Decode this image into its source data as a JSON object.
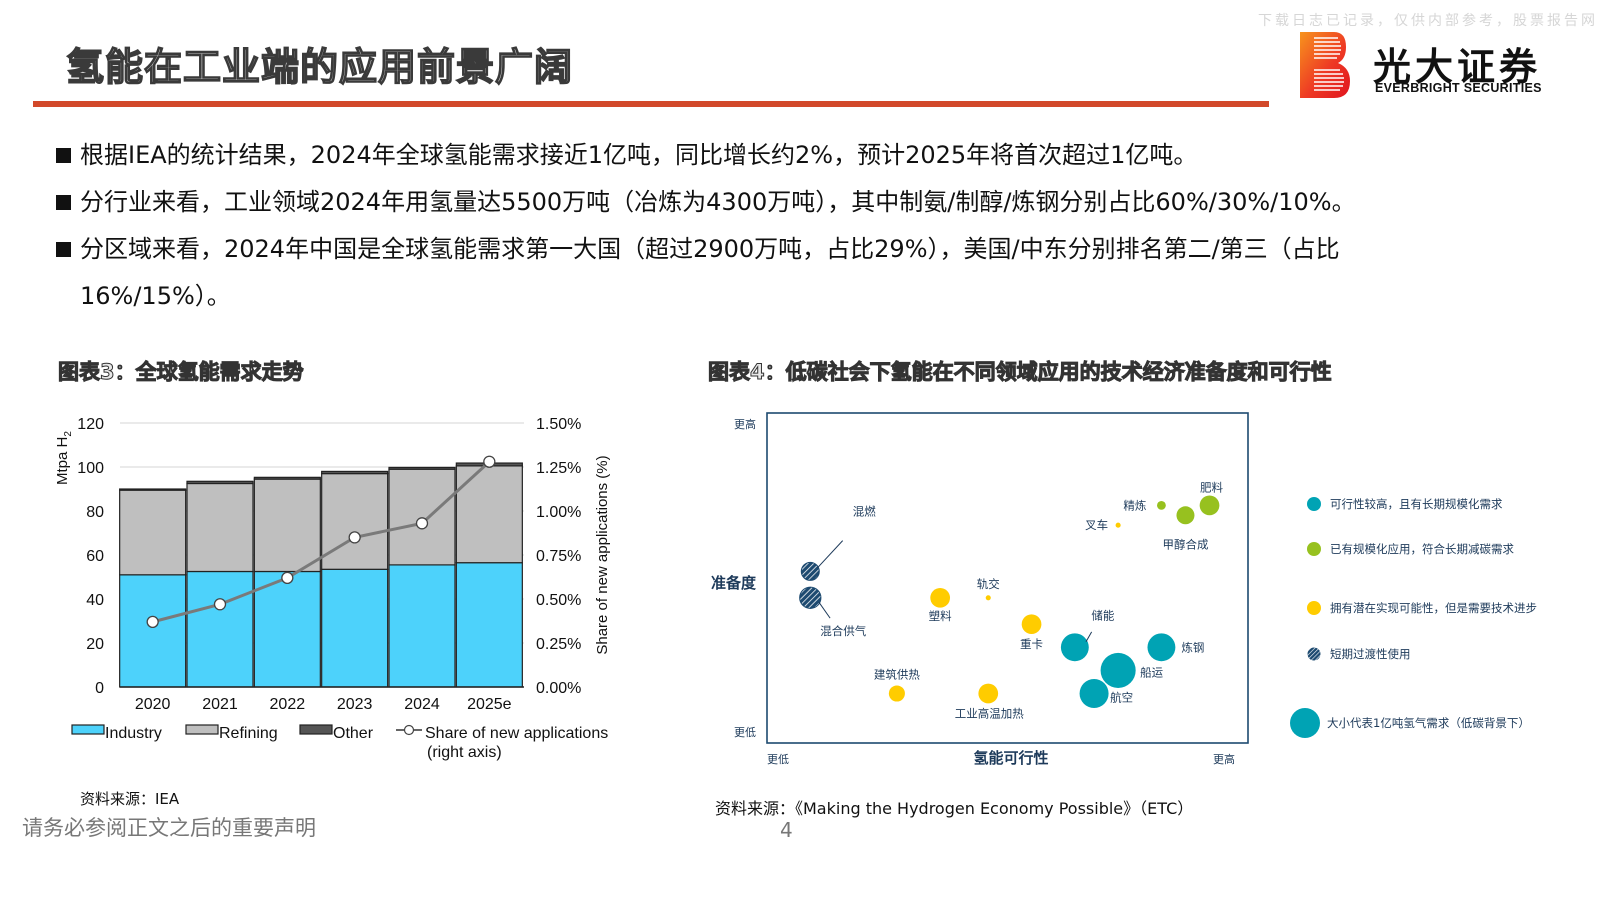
{
  "header": {
    "title": "氢能在工业端的应用前景广阔",
    "watermark": "下载日志已记录，仅供内部参考，股票报告网",
    "logo_cn": "光大证券",
    "logo_en": "EVERBRIGHT SECURITIES",
    "accent_color": "#d2492a"
  },
  "bullets": [
    "根据IEA的统计结果，2024年全球氢能需求接近1亿吨，同比增长约2%，预计2025年将首次超过1亿吨。",
    "分行业来看，工业领域2024年用氢量达5500万吨（冶炼为4300万吨），其中制氨/制醇/炼钢分别占比60%/30%/10%。",
    "分区域来看，2024年中国是全球氢能需求第一大国（超过2900万吨，占比29%），美国/中东分别排名第二/第三（占比16%/15%）。"
  ],
  "figure3": {
    "title": "图表3：全球氢能需求走势",
    "source": "资料来源：IEA"
  },
  "figure4": {
    "title": "图表4：低碳社会下氢能在不同领域应用的技术经济准备度和可行性",
    "source": "资料来源：《Making the Hydrogen Economy Possible》（ETC）"
  },
  "footer": {
    "disclaimer": "请务必参阅正文之后的重要声明",
    "page_number": "4"
  },
  "chart_data": [
    {
      "type": "bar",
      "stacked": true,
      "title": "",
      "categories": [
        "2020",
        "2021",
        "2022",
        "2023",
        "2024",
        "2025e"
      ],
      "series": [
        {
          "name": "Industry",
          "color": "#4dd2fb",
          "values": [
            51,
            52.5,
            52.5,
            53.5,
            55.5,
            56.5
          ]
        },
        {
          "name": "Refining",
          "color": "#bfbfbf",
          "values": [
            38.5,
            40,
            42,
            43.5,
            43.5,
            44
          ]
        },
        {
          "name": "Other",
          "color": "#555555",
          "values": [
            0.5,
            1,
            0.8,
            1,
            0.8,
            1.3
          ]
        }
      ],
      "line_series": {
        "name": "Share of new applications (right axis)",
        "axis": "right",
        "values": [
          0.37,
          0.47,
          0.62,
          0.85,
          0.93,
          1.28
        ]
      },
      "ylabel": "Mtpa H2",
      "ylabel_sub": "2",
      "ylabel_main": "Mtpa H",
      "y2label": "Share of new applications (%)",
      "ylim": [
        0,
        120
      ],
      "yticks": [
        "0",
        "20",
        "40",
        "60",
        "80",
        "100",
        "120"
      ],
      "y2lim": [
        0,
        1.5
      ],
      "y2ticks": [
        "0.00%",
        "0.25%",
        "0.50%",
        "0.75%",
        "1.00%",
        "1.25%",
        "1.50%"
      ],
      "legend": [
        {
          "label": "Industry",
          "kind": "box",
          "color": "#4dd2fb"
        },
        {
          "label": "Refining",
          "kind": "box",
          "color": "#bfbfbf"
        },
        {
          "label": "Other",
          "kind": "box",
          "color": "#555555"
        },
        {
          "label": "Share of new applications",
          "label2": "(right axis)",
          "kind": "line"
        }
      ],
      "legend_position": "bottom",
      "grid": true
    },
    {
      "type": "scatter",
      "subtype": "bubble",
      "xlabel": "氢能可行性",
      "ylabel": "准备度",
      "x_low_label": "更低",
      "x_high_label": "更高",
      "y_low_label": "更低",
      "y_high_label": "更高",
      "xlim": [
        0,
        100
      ],
      "ylim": [
        0,
        100
      ],
      "categories": {
        "teal": {
          "color": "#00a3b4",
          "label": "可行性较高，且有长期规模化需求"
        },
        "green": {
          "color": "#97c11f",
          "label": "已有规模化应用，符合长期减碳需求"
        },
        "yellow": {
          "color": "#ffcc00",
          "label": "拥有潜在实现可能性，但是需要技术进步"
        },
        "hatched": {
          "color": "#1d4a70",
          "label": "短期过渡性使用"
        }
      },
      "size_legend": "大小代表1亿吨氢气需求（低碳背景下）",
      "points": [
        {
          "name": "混燃",
          "x": 9,
          "y": 52,
          "size": 0.25,
          "cat": "hatched"
        },
        {
          "name": "混合供气",
          "x": 9,
          "y": 44,
          "size": 0.35,
          "cat": "hatched"
        },
        {
          "name": "塑料",
          "x": 36,
          "y": 44,
          "size": 0.3,
          "cat": "yellow"
        },
        {
          "name": "轨交",
          "x": 46,
          "y": 44,
          "size": 0.02,
          "cat": "yellow"
        },
        {
          "name": "重卡",
          "x": 55,
          "y": 36,
          "size": 0.3,
          "cat": "yellow"
        },
        {
          "name": "建筑供热",
          "x": 27,
          "y": 15,
          "size": 0.2,
          "cat": "yellow"
        },
        {
          "name": "工业高温加热",
          "x": 46,
          "y": 15,
          "size": 0.3,
          "cat": "yellow"
        },
        {
          "name": "叉车",
          "x": 73,
          "y": 66,
          "size": 0.02,
          "cat": "yellow"
        },
        {
          "name": "精炼",
          "x": 82,
          "y": 72,
          "size": 0.06,
          "cat": "green"
        },
        {
          "name": "甲醇合成",
          "x": 87,
          "y": 69,
          "size": 0.25,
          "cat": "green"
        },
        {
          "name": "肥料",
          "x": 92,
          "y": 72,
          "size": 0.3,
          "cat": "green"
        },
        {
          "name": "储能",
          "x": 64,
          "y": 29,
          "size": 0.6,
          "cat": "teal"
        },
        {
          "name": "炼钢",
          "x": 82,
          "y": 29,
          "size": 0.6,
          "cat": "teal"
        },
        {
          "name": "船运",
          "x": 73,
          "y": 22,
          "size": 0.95,
          "cat": "teal"
        },
        {
          "name": "航空",
          "x": 68,
          "y": 15,
          "size": 0.65,
          "cat": "teal"
        }
      ]
    }
  ]
}
